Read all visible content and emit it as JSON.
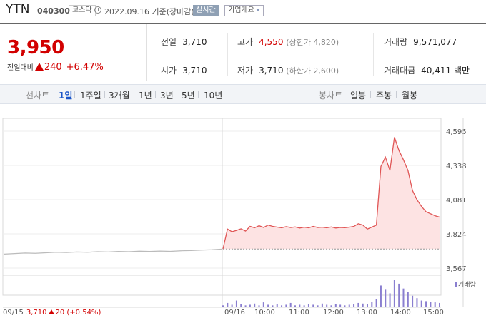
{
  "header": {
    "name": "YTN",
    "code": "040300",
    "market": "코스닥",
    "date": "2022.09.16 기준(장마감)",
    "realtime": "실시간",
    "corp_info": "기업개요"
  },
  "price": {
    "current": "3,950",
    "change_label": "전일대비",
    "change": "240",
    "change_rate": "+6.47%"
  },
  "stats": {
    "prev_close": {
      "label": "전일",
      "value": "3,710"
    },
    "high": {
      "label": "고가",
      "value": "4,550",
      "note": "(상한가 4,820)"
    },
    "volume": {
      "label": "거래량",
      "value": "9,571,077"
    },
    "open": {
      "label": "시가",
      "value": "3,710"
    },
    "low": {
      "label": "저가",
      "value": "3,710",
      "note": "(하한가 2,600)"
    },
    "amount": {
      "label": "거래대금",
      "value": "40,411",
      "unit": "백만"
    }
  },
  "tabs": {
    "line_chart": "선차트",
    "periods": [
      "1일",
      "1주일",
      "3개월",
      "1년",
      "3년",
      "5년",
      "10년"
    ],
    "active_period": "1일",
    "candle_chart": "봉차트",
    "candles": [
      "일봉",
      "주봉",
      "월봉"
    ]
  },
  "chart_data": {
    "type": "line",
    "y_ticks": [
      "4,595",
      "4,338",
      "4,081",
      "3,824",
      "3,567"
    ],
    "ylim": [
      3567,
      4595
    ],
    "reference_price": 3710,
    "x_labels": [
      "09/15",
      "09/16",
      "10:00",
      "11:00",
      "12:00",
      "13:00",
      "14:00",
      "15:00"
    ],
    "prev_day": {
      "date": "09/15",
      "close": "3,710",
      "change": "20",
      "change_rate": "(+0.54%)",
      "values": [
        3672,
        3676,
        3680,
        3678,
        3682,
        3686,
        3684,
        3688,
        3686,
        3690,
        3688,
        3692,
        3690,
        3694,
        3692,
        3695,
        3693,
        3697,
        3699,
        3702,
        3705,
        3710
      ]
    },
    "today": {
      "date": "09/16",
      "values": [
        3710,
        3860,
        3840,
        3850,
        3862,
        3845,
        3880,
        3870,
        3885,
        3872,
        3890,
        3880,
        3875,
        3870,
        3878,
        3872,
        3876,
        3868,
        3874,
        3870,
        3880,
        3872,
        3874,
        3870,
        3876,
        3868,
        3872,
        3870,
        3874,
        3880,
        3900,
        3890,
        3860,
        3875,
        3890,
        4330,
        4400,
        4300,
        4550,
        4450,
        4380,
        4300,
        4150,
        4080,
        4030,
        3990,
        3975,
        3960,
        3950
      ]
    },
    "volume_legend": "거래량",
    "volume_values": [
      2,
      6,
      3,
      10,
      4,
      2,
      3,
      5,
      2,
      7,
      3,
      2,
      4,
      2,
      3,
      6,
      2,
      3,
      2,
      4,
      3,
      2,
      5,
      3,
      2,
      4,
      3,
      2,
      3,
      4,
      6,
      5,
      4,
      8,
      12,
      35,
      28,
      22,
      45,
      38,
      30,
      24,
      18,
      14,
      10,
      9,
      8,
      7,
      6
    ],
    "grid": true
  },
  "colors": {
    "up": "#d20000",
    "line_today": "#e05555",
    "fill_today": "#fde3e3",
    "line_prev": "#bbbbbb",
    "volume": "#8a7fd0",
    "active_tab": "#1a55c8"
  }
}
